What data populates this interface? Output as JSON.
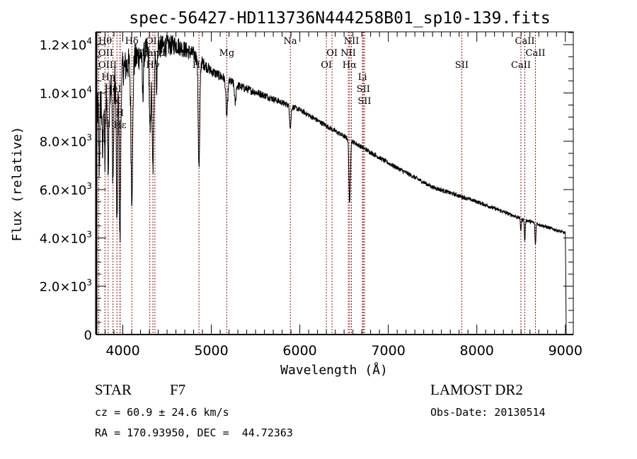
{
  "chart_data": {
    "type": "line",
    "title": "spec-56427-HD113736N444258B01_sp10-139.fits",
    "xlabel": "Wavelength (Å)",
    "ylabel": "Flux (relative)",
    "xlim": [
      3700,
      9090
    ],
    "ylim": [
      0,
      12530
    ],
    "grid": false,
    "x_ticks": [
      {
        "value": 4000,
        "label": "4000"
      },
      {
        "value": 5000,
        "label": "5000"
      },
      {
        "value": 6000,
        "label": "6000"
      },
      {
        "value": 7000,
        "label": "7000"
      },
      {
        "value": 8000,
        "label": "8000"
      },
      {
        "value": 9000,
        "label": "9000"
      }
    ],
    "y_ticks": [
      {
        "value": 0,
        "base": "0",
        "exp": ""
      },
      {
        "value": 2000,
        "base": "2.0×10",
        "exp": "3"
      },
      {
        "value": 4000,
        "base": "4.0×10",
        "exp": "3"
      },
      {
        "value": 6000,
        "base": "6.0×10",
        "exp": "3"
      },
      {
        "value": 8000,
        "base": "8.0×10",
        "exp": "3"
      },
      {
        "value": 10000,
        "base": "1.0×10",
        "exp": "4"
      },
      {
        "value": 12000,
        "base": "1.2×10",
        "exp": "4"
      }
    ],
    "spectrum": {
      "range": [
        3700,
        9010
      ],
      "continuum": [
        [
          3700,
          9200
        ],
        [
          3800,
          10200
        ],
        [
          4000,
          11000
        ],
        [
          4200,
          11600
        ],
        [
          4400,
          11900
        ],
        [
          4600,
          12000
        ],
        [
          4800,
          11600
        ],
        [
          5000,
          10900
        ],
        [
          5300,
          10300
        ],
        [
          5600,
          9900
        ],
        [
          6000,
          9300
        ],
        [
          6500,
          8200
        ],
        [
          7000,
          7100
        ],
        [
          7500,
          6100
        ],
        [
          8000,
          5500
        ],
        [
          8500,
          4800
        ],
        [
          9000,
          4200
        ]
      ],
      "noise": [
        [
          3700,
          900
        ],
        [
          4400,
          500
        ],
        [
          5000,
          220
        ],
        [
          6000,
          110
        ],
        [
          9000,
          70
        ]
      ],
      "absorption": [
        [
          3734,
          2500,
          6
        ],
        [
          3771,
          2500,
          6
        ],
        [
          3798,
          3000,
          7
        ],
        [
          3835,
          3500,
          8
        ],
        [
          3889,
          4000,
          8
        ],
        [
          3934,
          6500,
          7
        ],
        [
          3968,
          7000,
          8
        ],
        [
          4102,
          5500,
          10
        ],
        [
          4226,
          1800,
          6
        ],
        [
          4308,
          3500,
          8
        ],
        [
          4340,
          5000,
          10
        ],
        [
          4383,
          1500,
          6
        ],
        [
          4861,
          4500,
          9
        ],
        [
          5175,
          1500,
          10
        ],
        [
          5270,
          800,
          8
        ],
        [
          5893,
          900,
          8
        ],
        [
          6563,
          2700,
          8
        ],
        [
          8498,
          500,
          5
        ],
        [
          8542,
          900,
          5
        ],
        [
          8662,
          900,
          5
        ]
      ],
      "cutoff": [
        9000,
        9010
      ]
    },
    "lines": [
      {
        "label": "OII",
        "wl": 3727,
        "row": 2
      },
      {
        "label": "OIII",
        "wl": 3729,
        "row": 3
      },
      {
        "label": "Hθ",
        "wl": 3798,
        "row": 1
      },
      {
        "label": "Hη",
        "wl": 3835,
        "row": 3
      },
      {
        "label": "HeI",
        "wl": 3889,
        "row": 2
      },
      {
        "label": "K",
        "wl": 3934,
        "row": 1
      },
      {
        "label": "H",
        "wl": 3968,
        "row": 3
      },
      {
        "label": "Hε",
        "wl": 3970,
        "row": 2
      },
      {
        "label": "Hδ",
        "wl": 4102,
        "row": 1
      },
      {
        "label": "Gband",
        "wl": 4305,
        "row": 2
      },
      {
        "label": "Hγ",
        "wl": 4340,
        "row": 3
      },
      {
        "label": "OIII",
        "wl": 4363,
        "row": 1
      },
      {
        "label": "Hβ",
        "wl": 4861,
        "row": 3
      },
      {
        "label": "Mg",
        "wl": 5175,
        "row": 2
      },
      {
        "label": "Na",
        "wl": 5893,
        "row": 1
      },
      {
        "label": "OI",
        "wl": 6300,
        "row": 3
      },
      {
        "label": "OI",
        "wl": 6364,
        "row": 2
      },
      {
        "label": "NII",
        "wl": 6548,
        "row": 2
      },
      {
        "label": "Hα",
        "wl": 6563,
        "row": 3
      },
      {
        "label": "NII",
        "wl": 6583,
        "row": 1
      },
      {
        "label": "Li",
        "wl": 6708,
        "row": 1
      },
      {
        "label": "SII",
        "wl": 6717,
        "row": 2
      },
      {
        "label": "SII",
        "wl": 6731,
        "row": 2
      },
      {
        "label": "SII",
        "wl": 7830,
        "row": 3
      },
      {
        "label": "CaII",
        "wl": 8498,
        "row": 3
      },
      {
        "label": "CaII",
        "wl": 8542,
        "row": 1
      },
      {
        "label": "CaII",
        "wl": 8662,
        "row": 2
      }
    ]
  },
  "info": {
    "class_label": "STAR",
    "subclass": "F7",
    "cz": "cz = 60.9 ± 24.6 km/s",
    "coords": "RA = 170.93950, DEC =  44.72363",
    "survey": "LAMOST DR2",
    "obs_date": "Obs-Date: 20130514"
  },
  "colors": {
    "spectrum": "#000000",
    "line_marker": "#8b1a1a",
    "axis": "#000000"
  }
}
